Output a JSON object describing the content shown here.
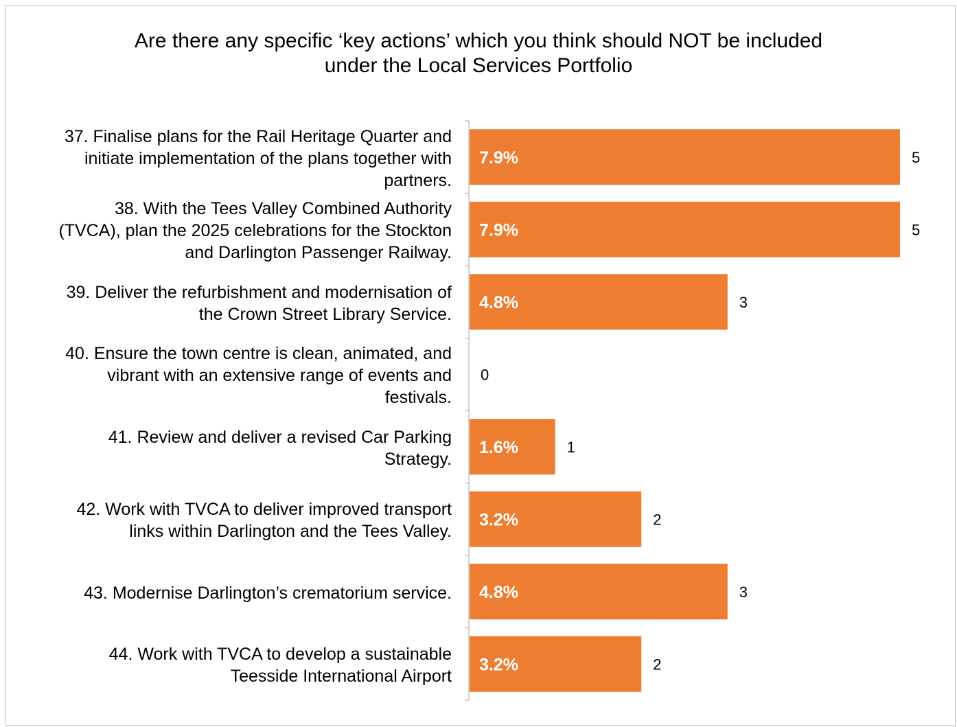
{
  "chart_data": {
    "type": "bar",
    "orientation": "horizontal",
    "title": "Are there any specific ‘key actions’ which you think should NOT be included\nunder the Local Services Portfolio",
    "categories": [
      "37. Finalise plans for the Rail Heritage Quarter and initiate implementation of the plans together with partners.",
      "38. With the Tees Valley Combined Authority (TVCA), plan the 2025 celebrations for the Stockton and Darlington Passenger Railway.",
      "39. Deliver the refurbishment and modernisation of the Crown Street Library Service.",
      "40. Ensure the town centre is clean, animated, and vibrant with an extensive range of events and festivals.",
      "41. Review and deliver a revised Car Parking Strategy.",
      "42. Work with TVCA to deliver improved transport links within Darlington and the Tees Valley.",
      "43. Modernise Darlington’s crematorium service.",
      "44. Work with TVCA to develop a sustainable Teesside International Airport"
    ],
    "category_lines": [
      [
        "37. Finalise plans for the Rail Heritage Quarter and",
        "initiate implementation of the plans together with",
        "partners."
      ],
      [
        "38. With the Tees Valley Combined Authority",
        "(TVCA), plan the 2025 celebrations for the Stockton",
        "and Darlington Passenger Railway."
      ],
      [
        "39. Deliver the refurbishment and modernisation of",
        "the Crown Street Library Service."
      ],
      [
        "40. Ensure the town centre is clean, animated, and",
        "vibrant with an extensive range of events and",
        "festivals."
      ],
      [
        "41. Review and deliver a revised Car Parking",
        "Strategy."
      ],
      [
        "42. Work with TVCA to deliver improved transport",
        "links within Darlington and the Tees Valley."
      ],
      [
        "43. Modernise Darlington’s crematorium service."
      ],
      [
        "44. Work with TVCA to develop a sustainable",
        "Teesside International Airport"
      ]
    ],
    "values": [
      5,
      5,
      3,
      0,
      1,
      2,
      3,
      2
    ],
    "percent_labels": [
      "7.9%",
      "7.9%",
      "4.8%",
      "",
      "1.6%",
      "3.2%",
      "4.8%",
      "3.2%"
    ],
    "xlim": [
      0,
      5
    ],
    "grid": false,
    "legend": "none",
    "bar_color": "#ED7D31",
    "bar_label_color": "#FFFFFF",
    "axis_color": "#A6A6A6"
  }
}
